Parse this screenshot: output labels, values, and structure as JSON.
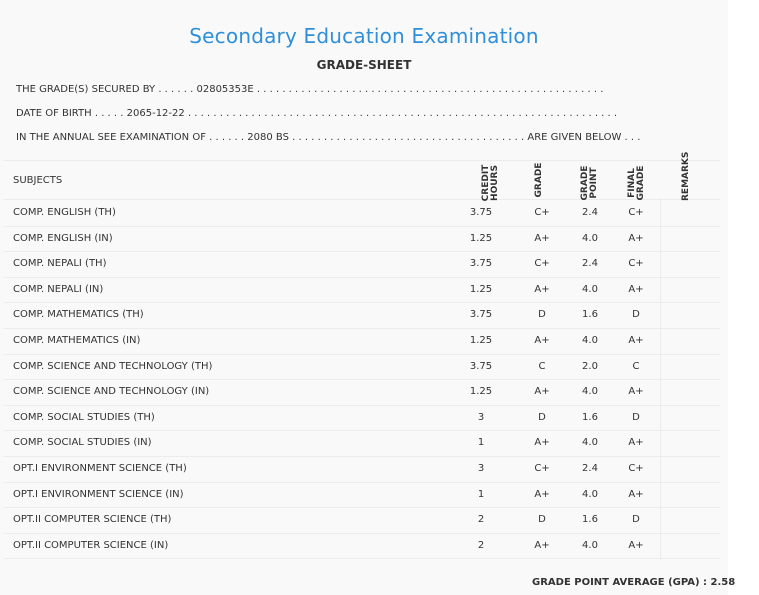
{
  "header": {
    "title": "Secondary Education Examination",
    "subtitle": "GRADE-SHEET"
  },
  "info": {
    "secured_by_label": "THE GRADE(S) SECURED BY . . . . . .",
    "secured_by_value": "02805353E",
    "secured_by_dots": ". . . . . . . . . . . . . . . . . . . . . . . . . . . . . . . . . . . . . . . . . . . . . . . . . . . . . . .",
    "dob_label": "DATE OF BIRTH . . . . .",
    "dob_value": "2065-12-22",
    "dob_dots": ". . . . . . . . . . . . . . . . . . . . . . . . . . . . . . . . . . . . . . . . . . . . . . . . . . . . . . . . . . . . . . . . . . . .",
    "exam_label": "IN THE ANNUAL SEE EXAMINATION OF . . . . . .",
    "exam_value": "2080 BS",
    "exam_dots": ". . . . . . . . . . . . . . . . . . . . . . . . . . . . . . . . . . . . .",
    "exam_suffix": "ARE GIVEN BELOW . . ."
  },
  "table": {
    "headers": {
      "subjects": "SUBJECTS",
      "credit_hours_1": "CREDIT",
      "credit_hours_2": "HOURS",
      "grade": "GRADE",
      "grade_point_1": "GRADE",
      "grade_point_2": "POINT",
      "final_grade_1": "FINAL",
      "final_grade_2": "GRADE",
      "remarks": "REMARKS"
    },
    "rows": [
      {
        "subject": "COMP. ENGLISH (TH)",
        "credit": "3.75",
        "grade": "C+",
        "point": "2.4",
        "final": "C+"
      },
      {
        "subject": "COMP. ENGLISH (IN)",
        "credit": "1.25",
        "grade": "A+",
        "point": "4.0",
        "final": "A+"
      },
      {
        "subject": "COMP. NEPALI (TH)",
        "credit": "3.75",
        "grade": "C+",
        "point": "2.4",
        "final": "C+"
      },
      {
        "subject": "COMP. NEPALI (IN)",
        "credit": "1.25",
        "grade": "A+",
        "point": "4.0",
        "final": "A+"
      },
      {
        "subject": "COMP. MATHEMATICS (TH)",
        "credit": "3.75",
        "grade": "D",
        "point": "1.6",
        "final": "D"
      },
      {
        "subject": "COMP. MATHEMATICS (IN)",
        "credit": "1.25",
        "grade": "A+",
        "point": "4.0",
        "final": "A+"
      },
      {
        "subject": "COMP. SCIENCE AND TECHNOLOGY (TH)",
        "credit": "3.75",
        "grade": "C",
        "point": "2.0",
        "final": "C"
      },
      {
        "subject": "COMP. SCIENCE AND TECHNOLOGY (IN)",
        "credit": "1.25",
        "grade": "A+",
        "point": "4.0",
        "final": "A+"
      },
      {
        "subject": "COMP. SOCIAL STUDIES (TH)",
        "credit": "3",
        "grade": "D",
        "point": "1.6",
        "final": "D"
      },
      {
        "subject": "COMP. SOCIAL STUDIES (IN)",
        "credit": "1",
        "grade": "A+",
        "point": "4.0",
        "final": "A+"
      },
      {
        "subject": "OPT.I ENVIRONMENT SCIENCE (TH)",
        "credit": "3",
        "grade": "C+",
        "point": "2.4",
        "final": "C+"
      },
      {
        "subject": "OPT.I ENVIRONMENT SCIENCE (IN)",
        "credit": "1",
        "grade": "A+",
        "point": "4.0",
        "final": "A+"
      },
      {
        "subject": "OPT.II COMPUTER SCIENCE (TH)",
        "credit": "2",
        "grade": "D",
        "point": "1.6",
        "final": "D"
      },
      {
        "subject": "OPT.II COMPUTER SCIENCE (IN)",
        "credit": "2",
        "grade": "A+",
        "point": "4.0",
        "final": "A+"
      }
    ]
  },
  "footer": {
    "gpa_label": "GRADE POINT AVERAGE (GPA) :",
    "gpa_value": "2.58"
  },
  "colors": {
    "title": "#2f8fd8",
    "background": "#f9f9f9",
    "text": "#333333"
  }
}
